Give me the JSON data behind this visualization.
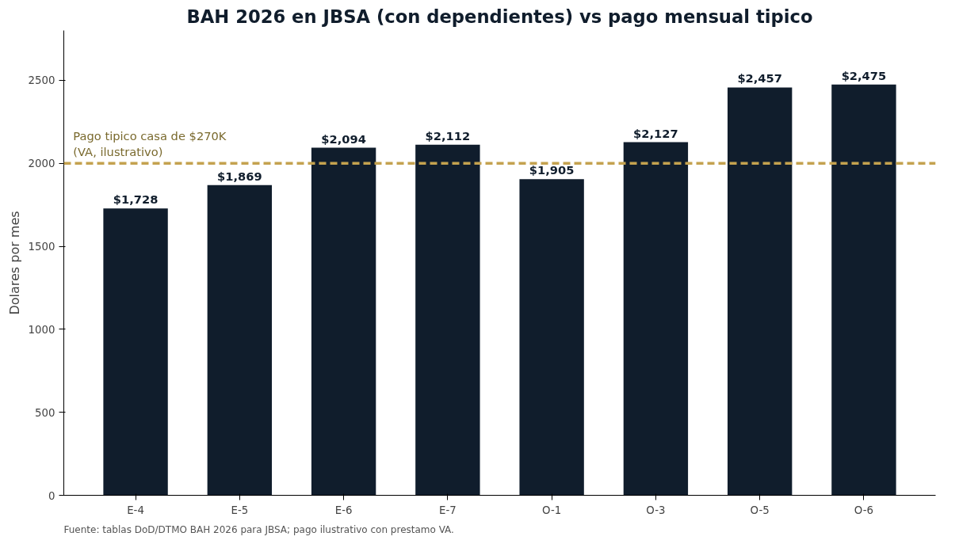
{
  "chart_data": {
    "type": "bar",
    "title": "BAH 2026 en JBSA (con dependientes) vs pago mensual tipico",
    "ylabel": "Dolares por mes",
    "categories": [
      "E-4",
      "E-5",
      "E-6",
      "E-7",
      "O-1",
      "O-3",
      "O-5",
      "O-6"
    ],
    "values": [
      1728,
      1869,
      2094,
      2112,
      1905,
      2127,
      2457,
      2475
    ],
    "value_labels": [
      "$1,728",
      "$1,869",
      "$2,094",
      "$2,112",
      "$1,905",
      "$2,127",
      "$2,457",
      "$2,475"
    ],
    "color": "#101d2c",
    "ylim": [
      0,
      2800
    ],
    "yticks": [
      0,
      500,
      1000,
      1500,
      2000,
      2500
    ],
    "grid": false,
    "ref_lines": [
      {
        "axis": "y",
        "value": 2000,
        "label": "Pago tipico casa de $270K\n(VA, ilustrativo)",
        "color": "#c4a24f",
        "line_style": "dashed"
      }
    ],
    "annotations": [
      "Fuente: tablas DoD/DTMO BAH 2026 para JBSA; pago ilustrativo con prestamo VA."
    ]
  }
}
